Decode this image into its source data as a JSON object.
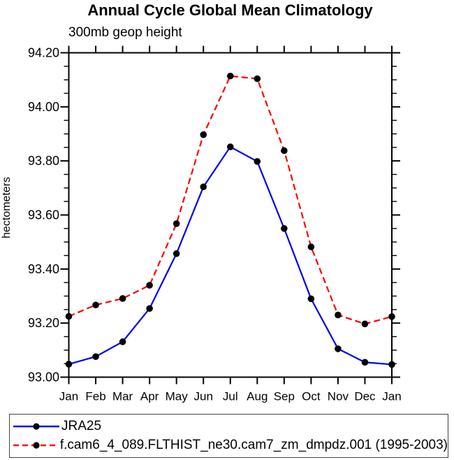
{
  "header": {
    "title": "Annual Cycle Global Mean Climatology",
    "subtitle": "300mb geop height"
  },
  "chart_data": {
    "type": "line",
    "title": "Annual Cycle Global Mean Climatology",
    "subtitle": "300mb geop height",
    "xlabel": "",
    "ylabel": "hectometers",
    "categories": [
      "Jan",
      "Feb",
      "Mar",
      "Apr",
      "May",
      "Jun",
      "Jul",
      "Aug",
      "Sep",
      "Oct",
      "Nov",
      "Dec",
      "Jan"
    ],
    "series": [
      {
        "name": "JRA25",
        "color": "#0000ee",
        "dash": "solid",
        "marker": "filled-circle",
        "marker_color": "#000000",
        "values": [
          93.048,
          93.076,
          93.131,
          93.254,
          93.457,
          93.704,
          93.852,
          93.798,
          93.55,
          93.29,
          93.105,
          93.055,
          93.047
        ]
      },
      {
        "name": "f.cam6_4_089.FLTHIST_ne30.cam7_zm_dmpdz.001 (1995-2003)",
        "color": "#ff0000",
        "dash": "dashed",
        "marker": "filled-circle",
        "marker_color": "#000000",
        "values": [
          93.225,
          93.267,
          93.291,
          93.34,
          93.568,
          93.897,
          94.114,
          94.104,
          93.838,
          93.482,
          93.23,
          93.197,
          93.224
        ]
      }
    ],
    "ylim": [
      93.0,
      94.2
    ],
    "y_major_step": 0.2,
    "y_minor_step": 0.05,
    "y_tick_labels": [
      "93.00",
      "93.20",
      "93.40",
      "93.60",
      "93.80",
      "94.00",
      "94.20"
    ],
    "grid": false,
    "tick_direction": "out",
    "legend_position": "bottom"
  }
}
